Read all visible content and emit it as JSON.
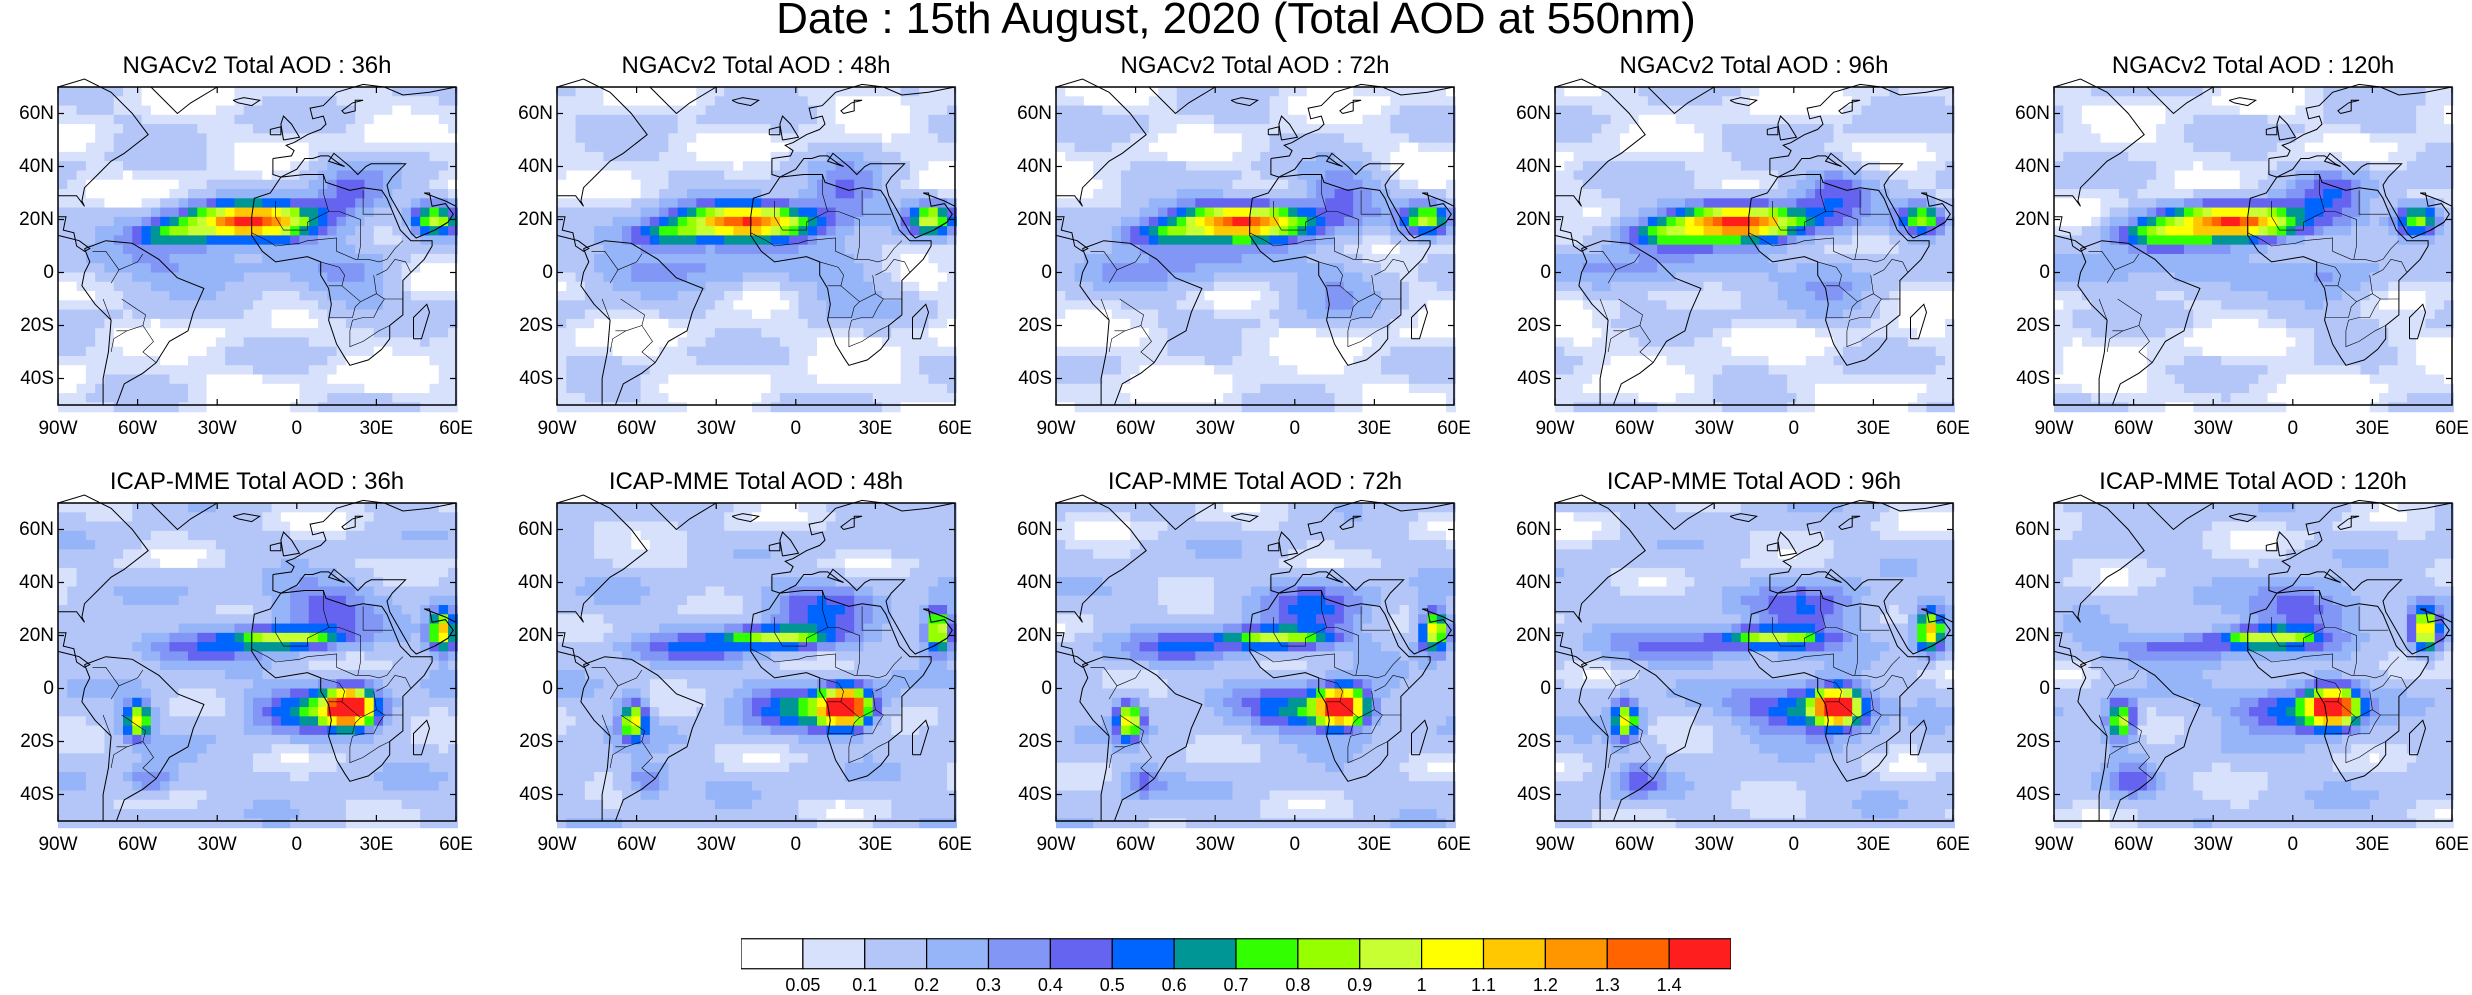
{
  "title": "Date : 15th August, 2020 (Total AOD at 550nm)",
  "rows": [
    {
      "model": "NGACv2",
      "panels": [
        {
          "title": "NGACv2 Total AOD : 36h",
          "lead": "36h"
        },
        {
          "title": "NGACv2 Total AOD : 48h",
          "lead": "48h"
        },
        {
          "title": "NGACv2 Total AOD : 72h",
          "lead": "72h"
        },
        {
          "title": "NGACv2 Total AOD : 96h",
          "lead": "96h"
        },
        {
          "title": "NGACv2 Total AOD : 120h",
          "lead": "120h"
        }
      ],
      "plumes": [
        {
          "lon": -17,
          "lat": 19,
          "peak": 1.3,
          "slon": 26,
          "slat": 7
        },
        {
          "lon": 52,
          "lat": 20,
          "peak": 0.8,
          "slon": 9,
          "slat": 6
        },
        {
          "lon": -48,
          "lat": 14,
          "peak": 0.5,
          "slon": 16,
          "slat": 5
        },
        {
          "lon": 20,
          "lat": 30,
          "peak": 0.35,
          "slon": 15,
          "slat": 10
        },
        {
          "lon": 20,
          "lat": -5,
          "peak": 0.2,
          "slon": 18,
          "slat": 12
        },
        {
          "lon": -45,
          "lat": 2,
          "peak": 0.22,
          "slon": 40,
          "slat": 9
        }
      ]
    },
    {
      "model": "ICAP-MME",
      "panels": [
        {
          "title": "ICAP-MME Total AOD : 36h",
          "lead": "36h"
        },
        {
          "title": "ICAP-MME Total AOD : 48h",
          "lead": "48h"
        },
        {
          "title": "ICAP-MME Total AOD : 72h",
          "lead": "72h"
        },
        {
          "title": "ICAP-MME Total AOD : 96h",
          "lead": "96h"
        },
        {
          "title": "ICAP-MME Total AOD : 120h",
          "lead": "120h"
        }
      ],
      "plumes": [
        {
          "lon": 20,
          "lat": -7,
          "peak": 1.45,
          "slon": 9,
          "slat": 7
        },
        {
          "lon": 5,
          "lat": -8,
          "peak": 0.5,
          "slon": 22,
          "slat": 8
        },
        {
          "lon": -60,
          "lat": -12,
          "peak": 0.9,
          "slon": 5,
          "slat": 7
        },
        {
          "lon": -5,
          "lat": 19,
          "peak": 0.75,
          "slon": 20,
          "slat": 4
        },
        {
          "lon": 55,
          "lat": 22,
          "peak": 1.0,
          "slon": 5,
          "slat": 8
        },
        {
          "lon": 10,
          "lat": 30,
          "peak": 0.35,
          "slon": 20,
          "slat": 10
        },
        {
          "lon": -40,
          "lat": 15,
          "peak": 0.3,
          "slon": 25,
          "slat": 6
        },
        {
          "lon": -55,
          "lat": -35,
          "peak": 0.3,
          "slon": 8,
          "slat": 6
        }
      ]
    }
  ],
  "map_extent": {
    "lon_min": -90,
    "lon_max": 60,
    "lat_min": -50,
    "lat_max": 70
  },
  "lat_ticks": [
    {
      "value": 60,
      "label": "60N"
    },
    {
      "value": 40,
      "label": "40N"
    },
    {
      "value": 20,
      "label": "20N"
    },
    {
      "value": 0,
      "label": "0"
    },
    {
      "value": -20,
      "label": "20S"
    },
    {
      "value": -40,
      "label": "40S"
    }
  ],
  "lon_ticks": [
    {
      "value": -90,
      "label": "90W"
    },
    {
      "value": -60,
      "label": "60W"
    },
    {
      "value": -30,
      "label": "30W"
    },
    {
      "value": 0,
      "label": "0"
    },
    {
      "value": 30,
      "label": "30E"
    },
    {
      "value": 60,
      "label": "60E"
    }
  ],
  "colorbar": {
    "labels": [
      "0.05",
      "0.1",
      "0.2",
      "0.3",
      "0.4",
      "0.5",
      "0.6",
      "0.7",
      "0.8",
      "0.9",
      "1",
      "1.1",
      "1.2",
      "1.3",
      "1.4"
    ],
    "colors": [
      "#ffffff",
      "#d7e1fc",
      "#b4c6f8",
      "#96b4f8",
      "#8296f5",
      "#6464f0",
      "#0064ff",
      "#009696",
      "#32ff00",
      "#96ff00",
      "#c8ff32",
      "#ffff00",
      "#ffc800",
      "#ff9600",
      "#ff6400",
      "#ff1e1e"
    ]
  }
}
